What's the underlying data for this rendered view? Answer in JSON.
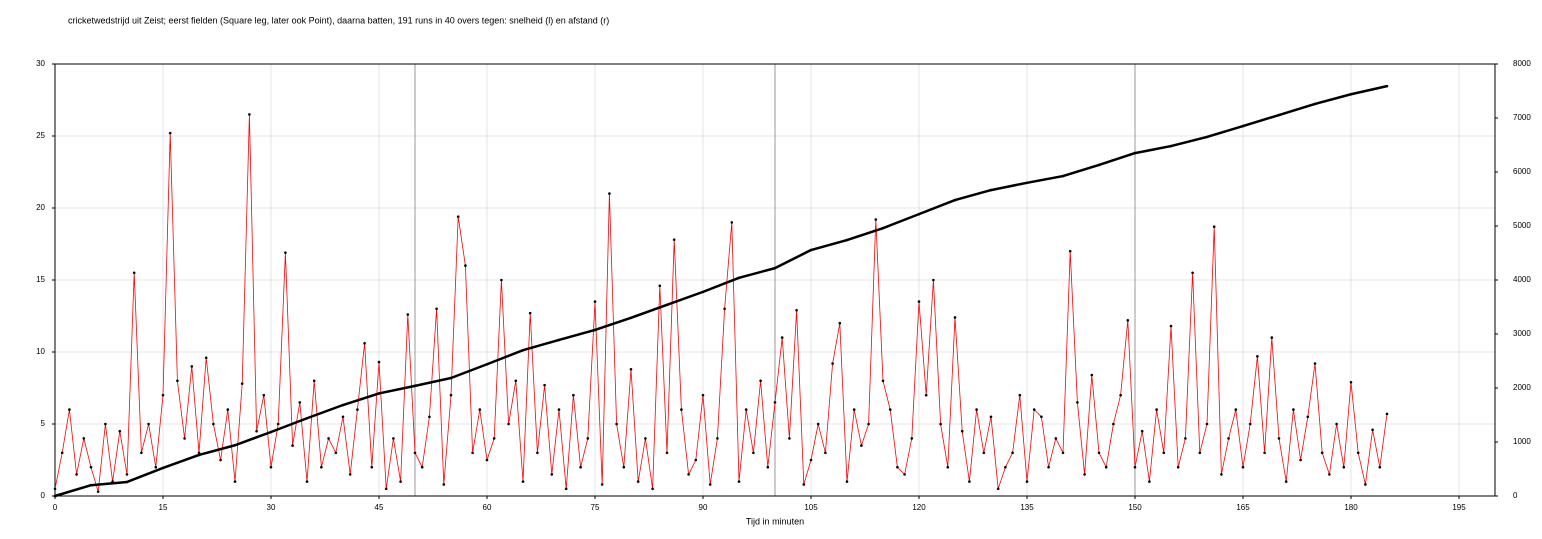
{
  "chart_data": {
    "type": "line",
    "title": "cricketwedstrijd uit Zeist; eerst fielden (Square leg, later ook Point), daarna batten, 191 runs in 40 overs tegen: snelheid (l) en afstand (r)",
    "xlabel": "Tijd in minuten",
    "xlim": [
      0,
      200
    ],
    "xticks": [
      0,
      15,
      30,
      45,
      60,
      75,
      90,
      105,
      120,
      135,
      150,
      165,
      180,
      195
    ],
    "ylim": [
      0,
      30
    ],
    "yticks": [
      0,
      5,
      10,
      15,
      20,
      25,
      30
    ],
    "y2lim": [
      0,
      8000
    ],
    "y2ticks": [
      0,
      1000,
      2000,
      3000,
      4000,
      5000,
      6000,
      7000,
      8000
    ],
    "grid": true,
    "vlines": [
      50,
      100,
      150
    ],
    "series": [
      {
        "color": "#ff0000",
        "marker_color": "#000000",
        "axis": "y",
        "x": [
          0,
          1,
          2,
          3,
          4,
          5,
          6,
          7,
          8,
          9,
          10,
          11,
          12,
          13,
          14,
          15,
          16,
          17,
          18,
          19,
          20,
          21,
          22,
          23,
          24,
          25,
          26,
          27,
          28,
          29,
          30,
          31,
          32,
          33,
          34,
          35,
          36,
          37,
          38,
          39,
          40,
          41,
          42,
          43,
          44,
          45,
          46,
          47,
          48,
          49,
          50,
          51,
          52,
          53,
          54,
          55,
          56,
          57,
          58,
          59,
          60,
          61,
          62,
          63,
          64,
          65,
          66,
          67,
          68,
          69,
          70,
          71,
          72,
          73,
          74,
          75,
          76,
          77,
          78,
          79,
          80,
          81,
          82,
          83,
          84,
          85,
          86,
          87,
          88,
          89,
          90,
          91,
          92,
          93,
          94,
          95,
          96,
          97,
          98,
          99,
          100,
          101,
          102,
          103,
          104,
          105,
          106,
          107,
          108,
          109,
          110,
          111,
          112,
          113,
          114,
          115,
          116,
          117,
          118,
          119,
          120,
          121,
          122,
          123,
          124,
          125,
          126,
          127,
          128,
          129,
          130,
          131,
          132,
          133,
          134,
          135,
          136,
          137,
          138,
          139,
          140,
          141,
          142,
          143,
          144,
          145,
          146,
          147,
          148,
          149,
          150,
          151,
          152,
          153,
          154,
          155,
          156,
          157,
          158,
          159,
          160,
          161,
          162,
          163,
          164,
          165,
          166,
          167,
          168,
          169,
          170,
          171,
          172,
          173,
          174,
          175,
          176,
          177,
          178,
          179,
          180,
          181,
          182,
          183,
          184,
          185
        ],
        "values": [
          0.5,
          3,
          6,
          1.5,
          4,
          2,
          0.3,
          5,
          1,
          4.5,
          1.5,
          15.5,
          3,
          5,
          2,
          7,
          25.2,
          8,
          4,
          9,
          3,
          9.6,
          5,
          2.5,
          6,
          1,
          7.8,
          26.5,
          4.5,
          7,
          2,
          5,
          16.9,
          3.5,
          6.5,
          1,
          8,
          2,
          4,
          3,
          5.5,
          1.5,
          6,
          10.6,
          2,
          9.3,
          0.5,
          4,
          1,
          12.6,
          3,
          2,
          5.5,
          13,
          0.8,
          7,
          19.4,
          16,
          3,
          6,
          2.5,
          4,
          15,
          5,
          8,
          1,
          12.7,
          3,
          7.7,
          1.5,
          6,
          0.5,
          7,
          2,
          4,
          13.5,
          0.8,
          21,
          5,
          2,
          8.8,
          1,
          4,
          0.5,
          14.6,
          3,
          17.8,
          6,
          1.5,
          2.5,
          7,
          0.8,
          4,
          13,
          19,
          1,
          6,
          3,
          8,
          2,
          6.5,
          11,
          4,
          12.9,
          0.8,
          2.5,
          5,
          3,
          9.2,
          12,
          1,
          6,
          3.5,
          5,
          19.2,
          8,
          6,
          2,
          1.5,
          4,
          13.5,
          7,
          15,
          5,
          2,
          12.4,
          4.5,
          1,
          6,
          3,
          5.5,
          0.5,
          2,
          3,
          7,
          1,
          6,
          5.5,
          2,
          4,
          3,
          17,
          6.5,
          1.5,
          8.4,
          3,
          2,
          5,
          7,
          12.2,
          2,
          4.5,
          1,
          6,
          3,
          11.8,
          2,
          4,
          15.5,
          3,
          5,
          18.7,
          1.5,
          4,
          6,
          2,
          5,
          9.7,
          3,
          11,
          4,
          1,
          6,
          2.5,
          5.5,
          9.2,
          3,
          1.5,
          5,
          2,
          7.9,
          3,
          0.8,
          4.6,
          2,
          5.7
        ]
      },
      {
        "color": "#000000",
        "marker_color": "#000000",
        "axis": "y2",
        "x": [
          0,
          5,
          10,
          15,
          20,
          25,
          30,
          35,
          40,
          45,
          50,
          55,
          60,
          65,
          70,
          75,
          80,
          85,
          90,
          95,
          100,
          105,
          110,
          115,
          120,
          125,
          130,
          135,
          140,
          145,
          150,
          155,
          160,
          165,
          170,
          175,
          180,
          185
        ],
        "values": [
          0,
          200,
          260,
          520,
          760,
          940,
          1185,
          1440,
          1685,
          1900,
          2040,
          2185,
          2440,
          2700,
          2890,
          3075,
          3300,
          3540,
          3780,
          4040,
          4220,
          4555,
          4740,
          4960,
          5220,
          5480,
          5665,
          5800,
          5925,
          6130,
          6350,
          6480,
          6650,
          6850,
          7055,
          7260,
          7440,
          7590
        ]
      }
    ]
  }
}
